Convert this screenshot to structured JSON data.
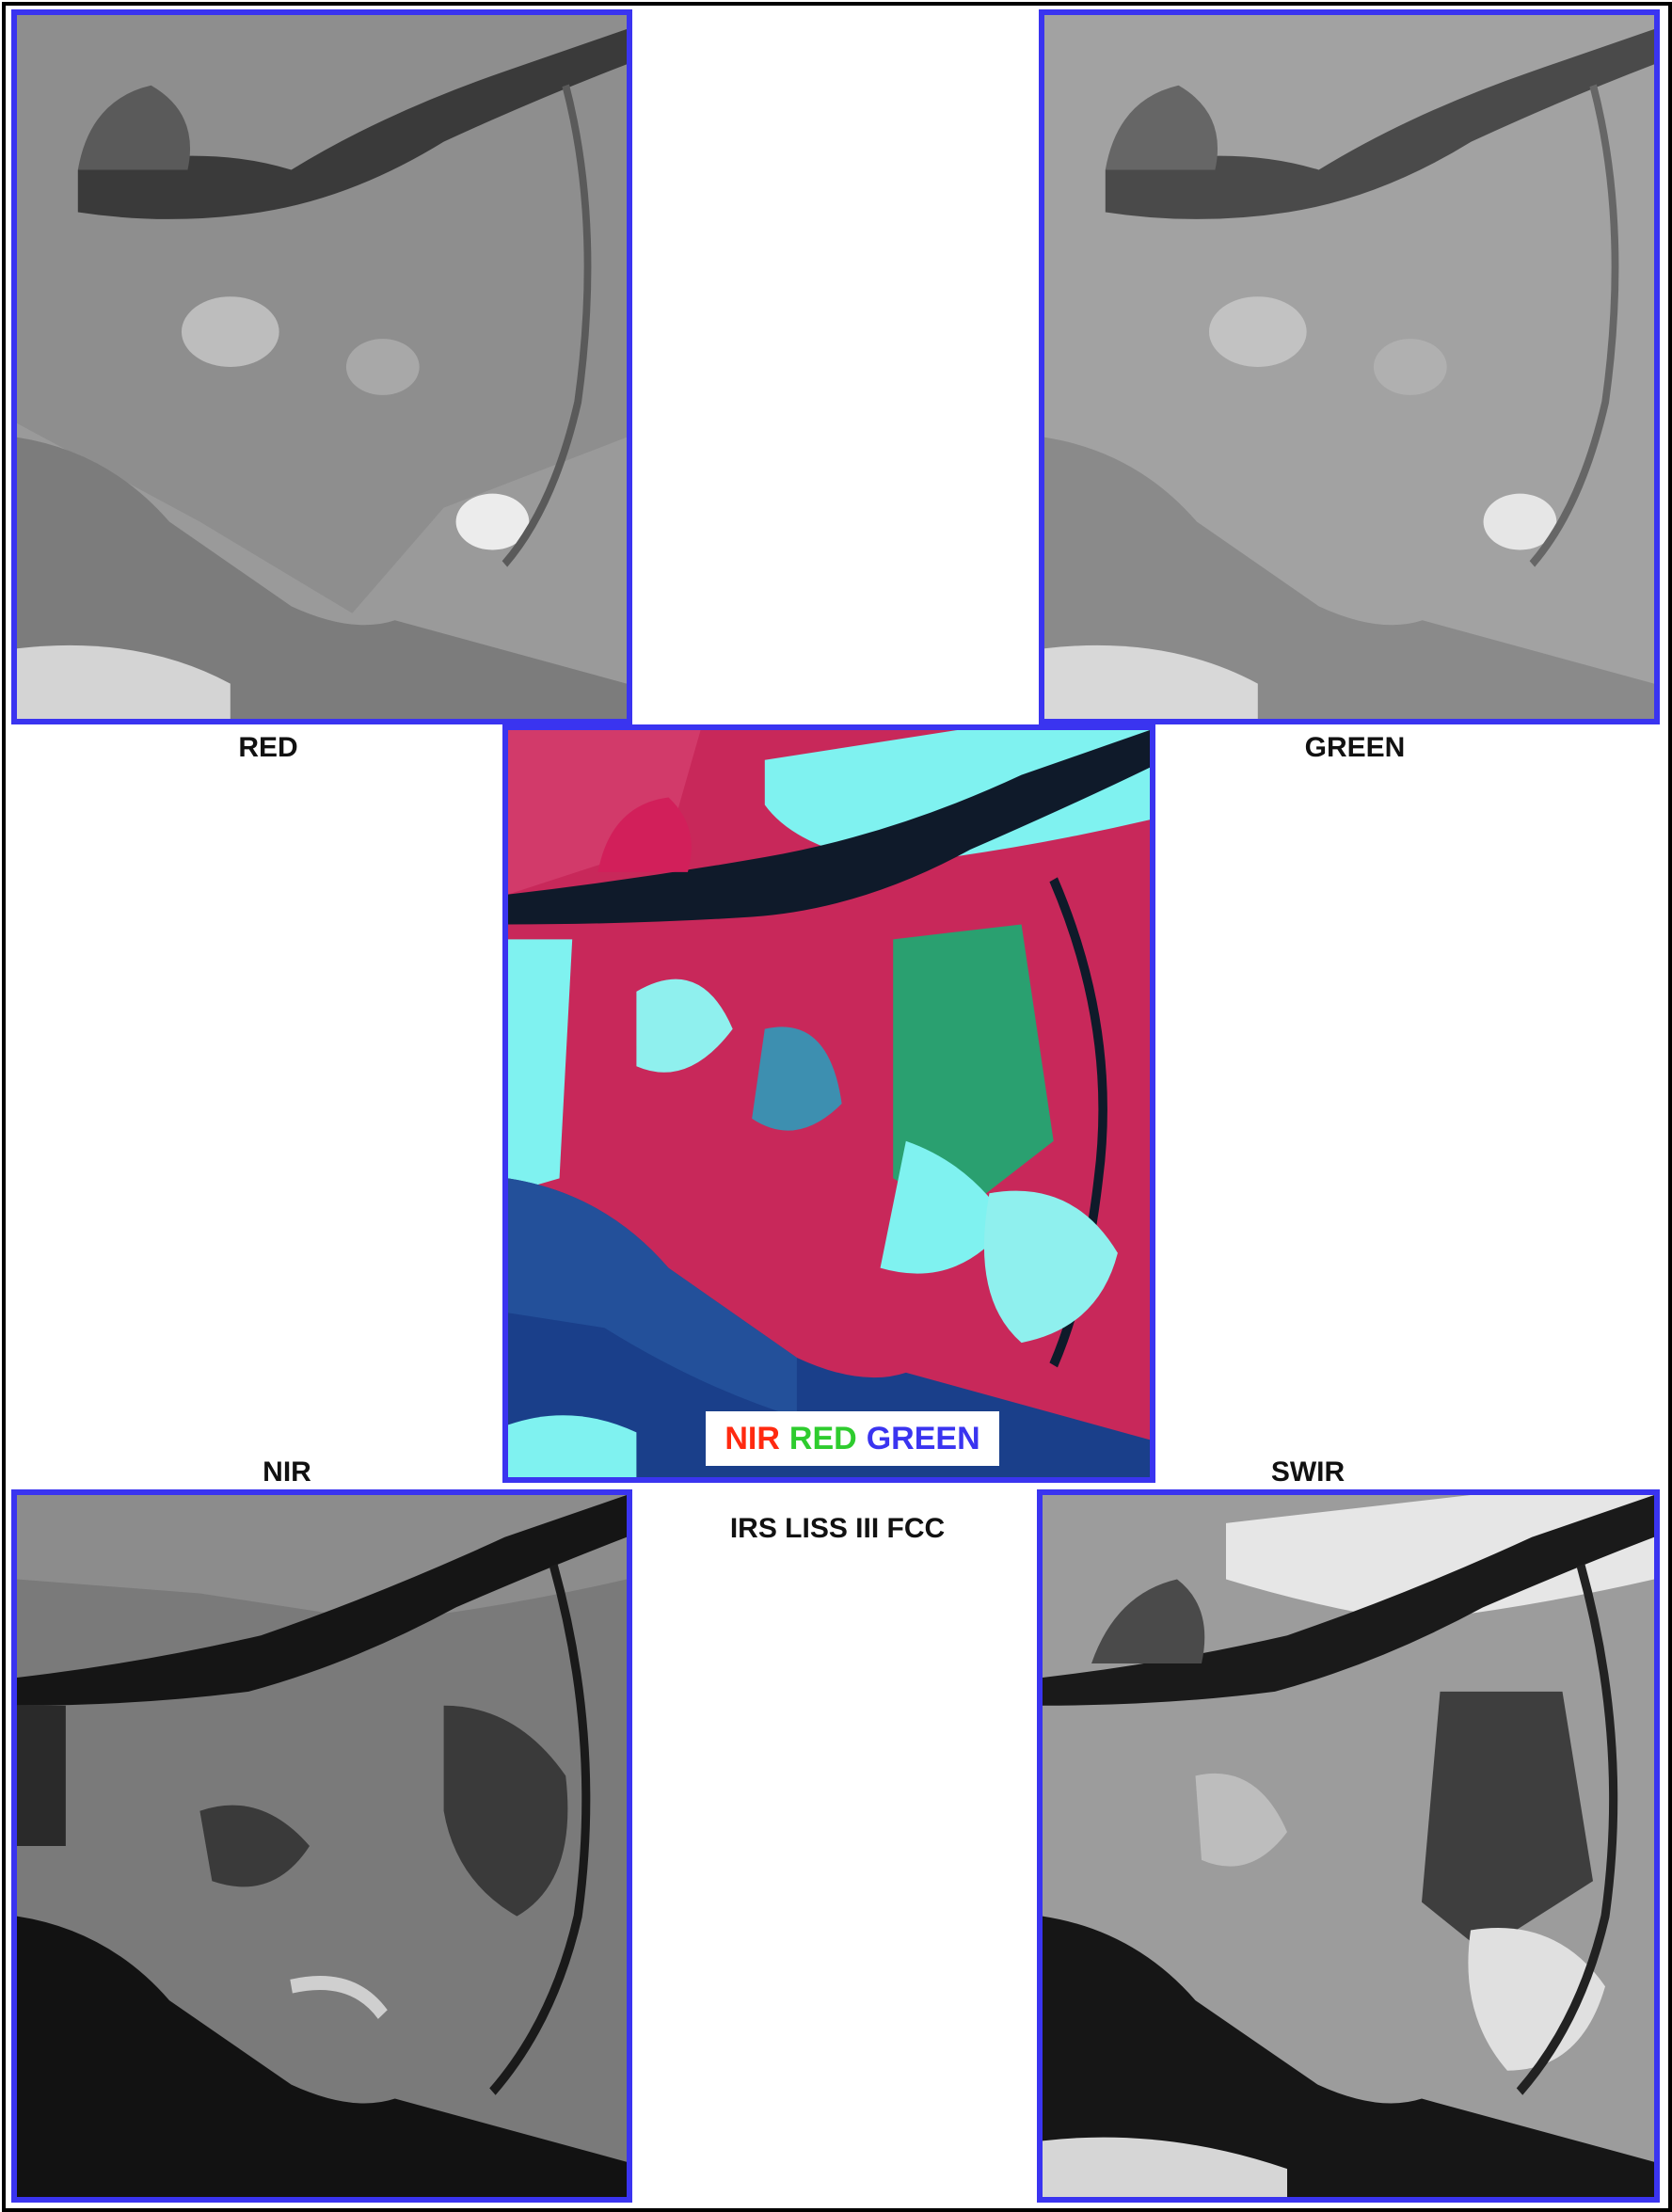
{
  "labels": {
    "red": "RED",
    "green": "GREEN",
    "nir": "NIR",
    "swir": "SWIR",
    "fcc_title": "IRS LISS III FCC"
  },
  "legend": {
    "nir": "NIR",
    "red": "RED",
    "green": "GREEN"
  },
  "colors": {
    "panel_border": "#3a34f0",
    "legend_nir": "#ff2a10",
    "legend_red": "#2ecc2e",
    "legend_green": "#3a34f0",
    "fcc_vegetation": "#c8285a",
    "fcc_bare": "#7ff2f0",
    "fcc_water": "#1a3f8a"
  }
}
